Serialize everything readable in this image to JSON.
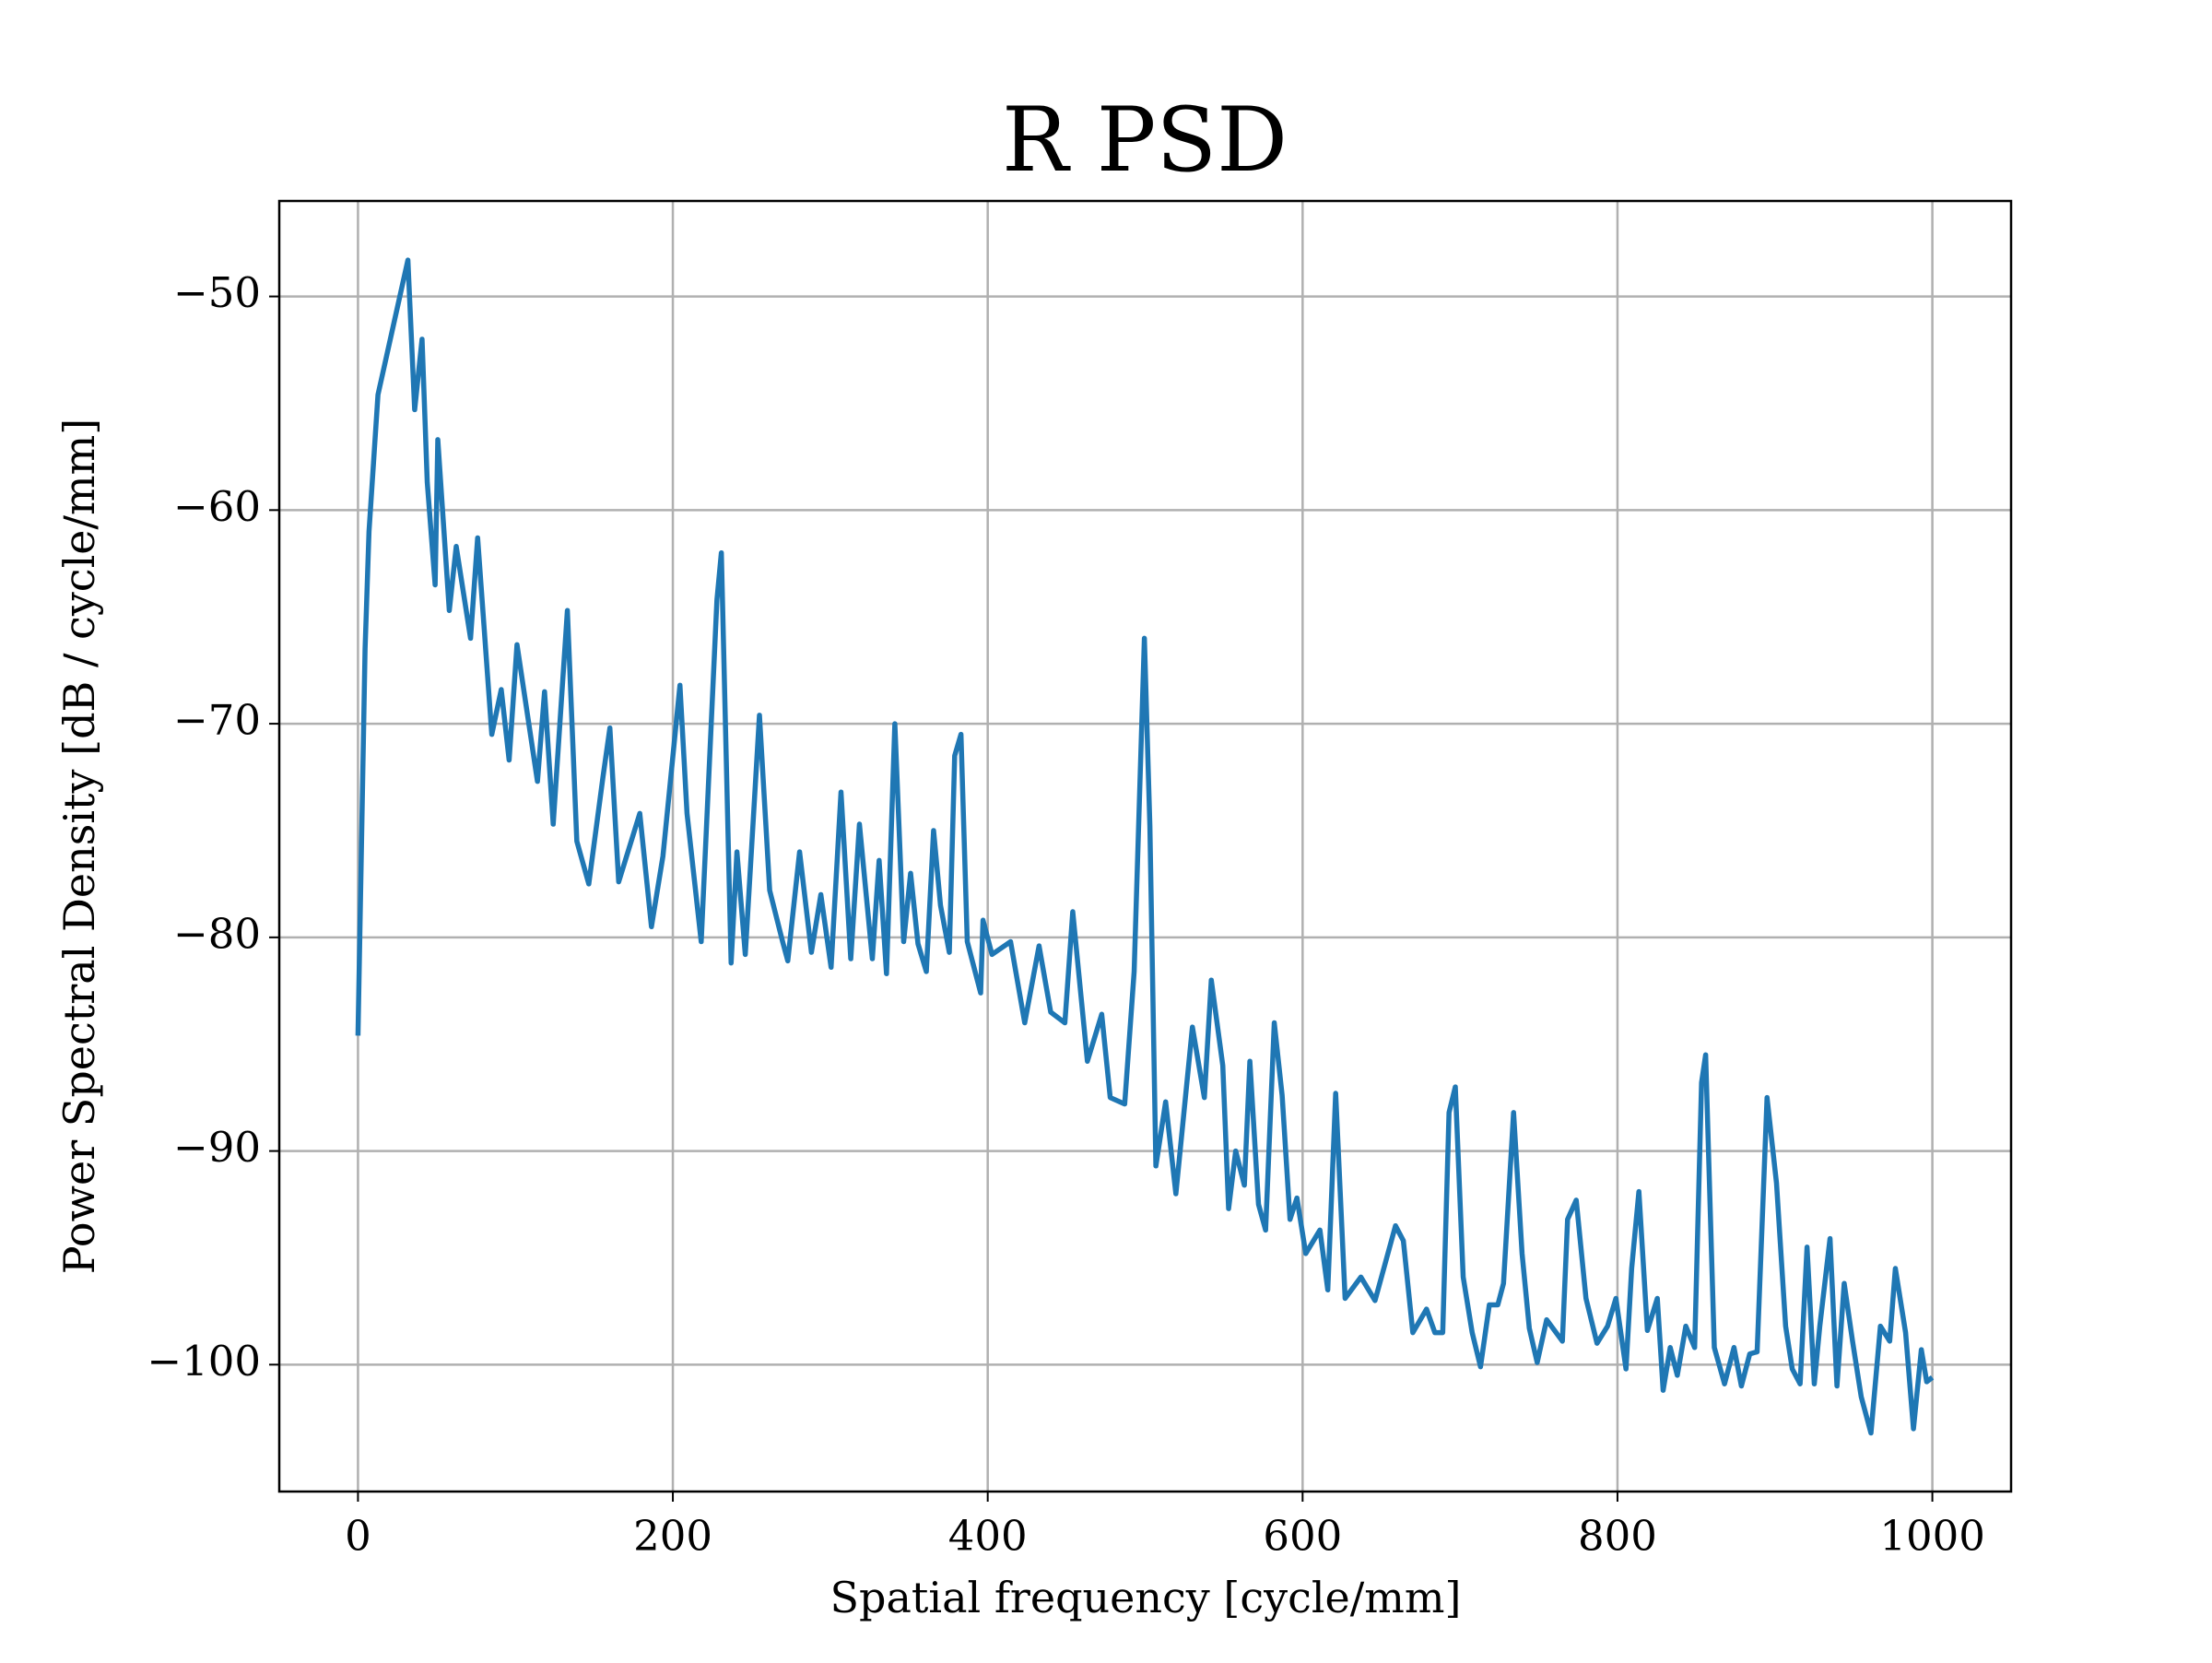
{
  "chart_data": {
    "type": "line",
    "title": "R PSD",
    "xlabel": "Spatial frequency [cycle/mm]",
    "ylabel": "Power Spectral Density [dB / cycle/mm]",
    "color": "#1f77b4",
    "grid": true,
    "xlim": [
      -50,
      1050
    ],
    "ylim": [
      -105.94,
      -45.53
    ],
    "xticks": [
      0,
      200,
      400,
      600,
      800,
      1000
    ],
    "yticks": [
      {
        "value": -100,
        "label": "−100"
      },
      {
        "value": -90,
        "label": "−90"
      },
      {
        "value": -80,
        "label": "−80"
      },
      {
        "value": -70,
        "label": "−70"
      },
      {
        "value": -60,
        "label": "−60"
      },
      {
        "value": -50,
        "label": "−50"
      }
    ],
    "x": [
      0,
      4.5,
      7,
      12.7,
      31.7,
      36,
      40.7,
      44,
      49,
      50.7,
      58,
      62.4,
      71.5,
      76,
      85,
      91,
      96,
      101,
      114,
      118.5,
      124,
      133,
      139,
      146.6,
      155.6,
      160,
      165.6,
      179,
      186.4,
      193.7,
      204.5,
      209,
      218,
      228,
      230.8,
      237,
      240.7,
      246,
      255,
      261.5,
      269.7,
      273,
      280.5,
      288,
      294,
      300.5,
      306.8,
      313,
      318.5,
      326.7,
      331,
      335.7,
      341,
      346.6,
      351,
      355.7,
      361,
      365.6,
      370,
      375.6,
      379,
      383,
      387,
      395.5,
      397,
      402.7,
      414.5,
      423.5,
      432.6,
      440,
      449,
      454,
      463.3,
      472.4,
      477.8,
      487,
      493,
      499.5,
      503,
      506.8,
      513,
      519.5,
      530,
      537.6,
      542,
      549.3,
      553,
      557.5,
      563,
      566.5,
      572,
      576.5,
      582,
      587,
      592,
      596.4,
      602,
      611,
      616,
      621,
      627,
      637,
      646,
      659,
      664,
      670,
      678.7,
      684,
      689,
      693,
      697,
      702,
      707.7,
      713,
      718.6,
      724,
      727.6,
      734,
      739.4,
      744,
      749,
      755,
      765,
      768.3,
      773.8,
      780,
      787,
      793.7,
      799,
      805.4,
      809,
      813.6,
      819,
      825.3,
      829,
      833.5,
      838,
      843.4,
      849,
      853.4,
      856,
      861.5,
      868,
      874,
      878.7,
      884,
      888.7,
      895,
      901,
      906.8,
      911,
      916,
      920.4,
      925,
      928.5,
      935,
      939.4,
      944,
      949.3,
      954.8,
      961,
      967,
      972.9,
      976.5,
      983,
      988,
      993,
      996.4,
      1000
    ],
    "values": [
      -84.6,
      -66.5,
      -61,
      -54.6,
      -48.3,
      -55.3,
      -52,
      -58.7,
      -63.5,
      -56.7,
      -64.7,
      -61.7,
      -66,
      -61.3,
      -70.5,
      -68.4,
      -71.7,
      -66.3,
      -72.7,
      -68.5,
      -74.7,
      -64.7,
      -75.5,
      -77.5,
      -72.5,
      -70.2,
      -77.4,
      -74.2,
      -79.5,
      -76.2,
      -68.2,
      -74.2,
      -80.2,
      -64.2,
      -62,
      -81.2,
      -76,
      -80.8,
      -69.6,
      -77.8,
      -80.2,
      -81.1,
      -76,
      -80.7,
      -78,
      -81.4,
      -73.2,
      -81,
      -74.7,
      -81,
      -76.4,
      -81.7,
      -70,
      -80.2,
      -77,
      -80.3,
      -81.6,
      -75,
      -78.5,
      -80.7,
      -71.5,
      -70.5,
      -80.2,
      -82.6,
      -79.2,
      -80.8,
      -80.2,
      -84,
      -80.4,
      -83.5,
      -84,
      -78.8,
      -85.8,
      -83.6,
      -87.5,
      -87.8,
      -81.6,
      -66,
      -74.8,
      -90.7,
      -87.7,
      -92,
      -84.2,
      -87.5,
      -82,
      -86,
      -92.7,
      -90,
      -91.6,
      -85.8,
      -92.5,
      -93.7,
      -84,
      -87.4,
      -93.2,
      -92.2,
      -94.8,
      -93.7,
      -96.5,
      -87.3,
      -96.9,
      -95.9,
      -97,
      -93.5,
      -94.2,
      -98.5,
      -97.4,
      -98.5,
      -98.5,
      -88.2,
      -87,
      -95.9,
      -98.5,
      -100.1,
      -97.2,
      -97.2,
      -96.2,
      -88.2,
      -94.8,
      -98.3,
      -99.9,
      -97.9,
      -98.9,
      -93.2,
      -92.3,
      -96.9,
      -99,
      -98.2,
      -96.9,
      -100.2,
      -95.5,
      -91.9,
      -98.4,
      -96.9,
      -101.2,
      -99.2,
      -100.5,
      -98.2,
      -99.2,
      -86.8,
      -85.5,
      -99.2,
      -100.9,
      -99.2,
      -101,
      -99.5,
      -99.4,
      -87.5,
      -91.5,
      -98.2,
      -100.2,
      -100.9,
      -94.5,
      -100.9,
      -98.2,
      -94.1,
      -101,
      -96.2,
      -98.9,
      -101.5,
      -103.2,
      -98.2,
      -98.9,
      -95.5,
      -98.5,
      -103,
      -99.3,
      -100.8,
      -100.6
    ]
  }
}
